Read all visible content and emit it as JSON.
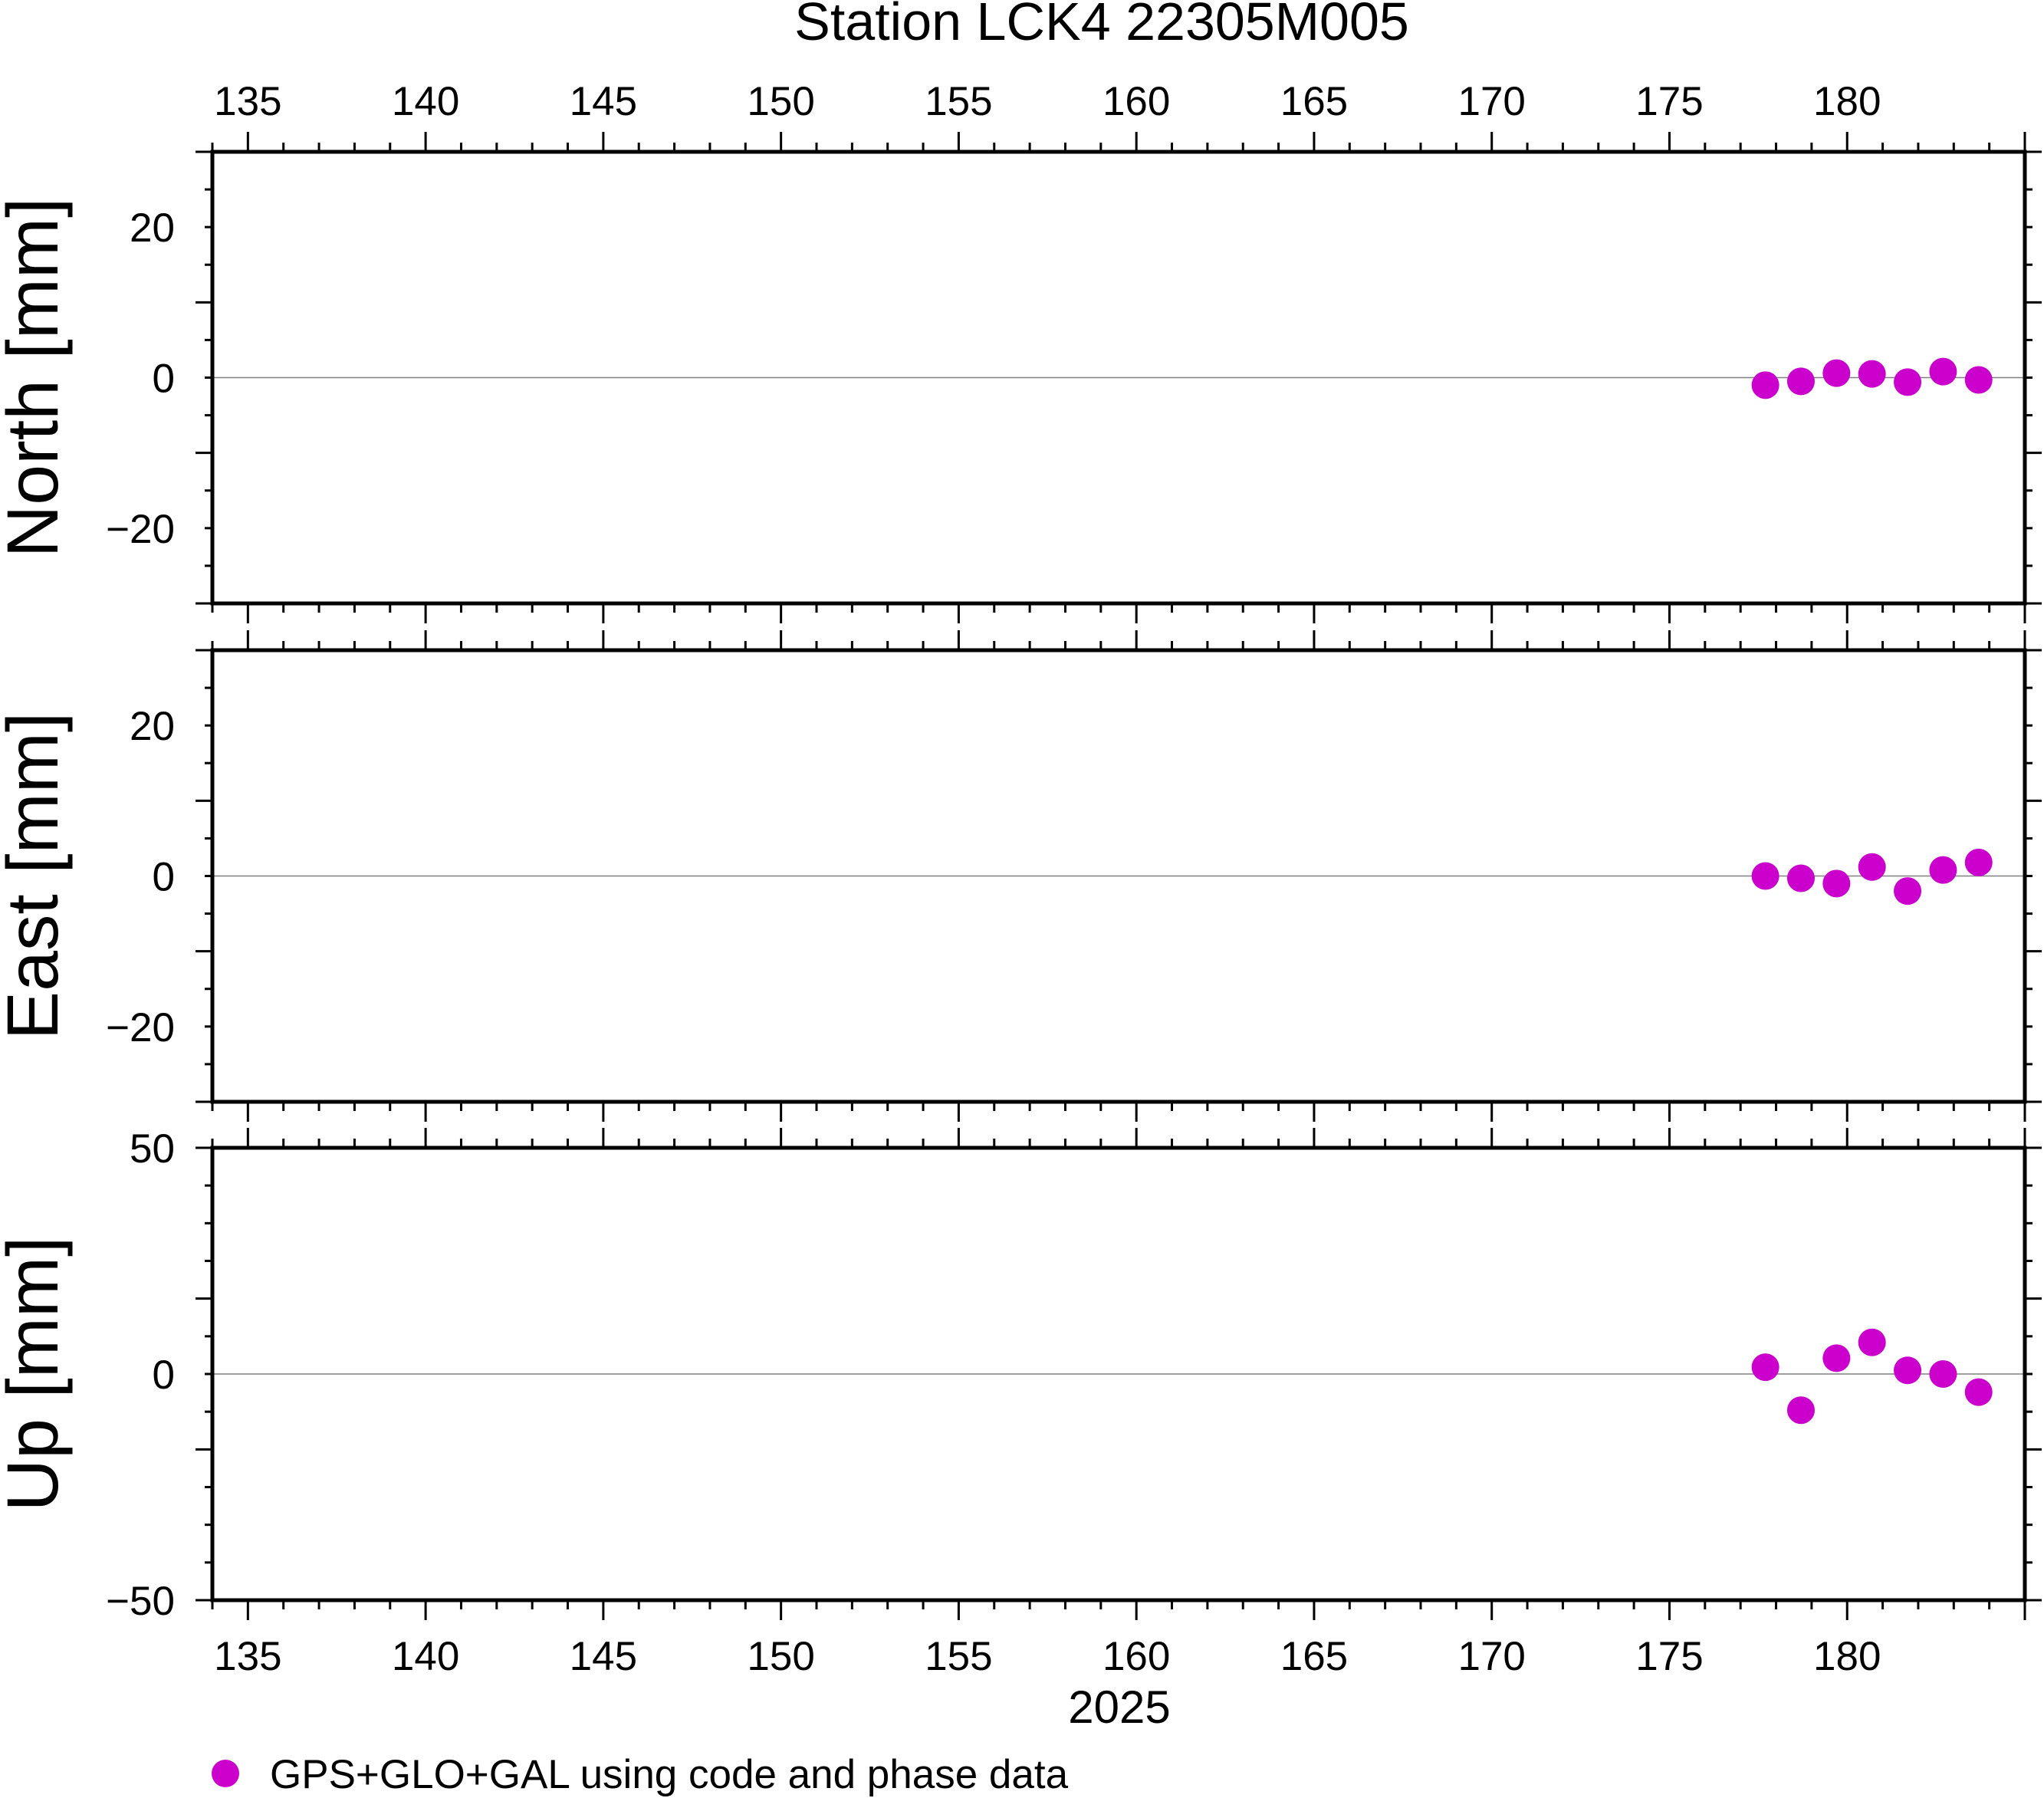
{
  "chart_data": {
    "type": "scatter",
    "title": "Station LCK4 22305M005",
    "xlabel": "2025",
    "xlim": [
      134,
      185
    ],
    "x_ticks": [
      "135",
      "140",
      "145",
      "150",
      "155",
      "160",
      "165",
      "170",
      "175",
      "180"
    ],
    "series_color": "#cc00cc",
    "legend": {
      "position": "bottom-left",
      "label": "GPS+GLO+GAL using code and phase data"
    },
    "panels": [
      {
        "ylabel": "North [mm]",
        "ylim": [
          -30,
          30
        ],
        "y_ticks": [
          "20",
          "0",
          "−20"
        ],
        "x": [
          177.7,
          178.7,
          179.7,
          180.7,
          181.7,
          182.7,
          183.7
        ],
        "y": [
          -1.0,
          -0.5,
          0.6,
          0.5,
          -0.6,
          0.8,
          -0.3
        ]
      },
      {
        "ylabel": "East [mm]",
        "ylim": [
          -30,
          30
        ],
        "y_ticks": [
          "20",
          "0",
          "−20"
        ],
        "x": [
          177.7,
          178.7,
          179.7,
          180.7,
          181.7,
          182.7,
          183.7
        ],
        "y": [
          0.0,
          -0.3,
          -1.0,
          1.2,
          -2.0,
          0.8,
          1.8
        ]
      },
      {
        "ylabel": "Up [mm]",
        "ylim": [
          -50,
          50
        ],
        "y_ticks": [
          "50",
          "0",
          "−50"
        ],
        "x": [
          177.7,
          178.7,
          179.7,
          180.7,
          181.7,
          182.7,
          183.7
        ],
        "y": [
          1.5,
          -8.0,
          3.5,
          7.0,
          0.8,
          0.0,
          -4.0
        ]
      }
    ]
  }
}
